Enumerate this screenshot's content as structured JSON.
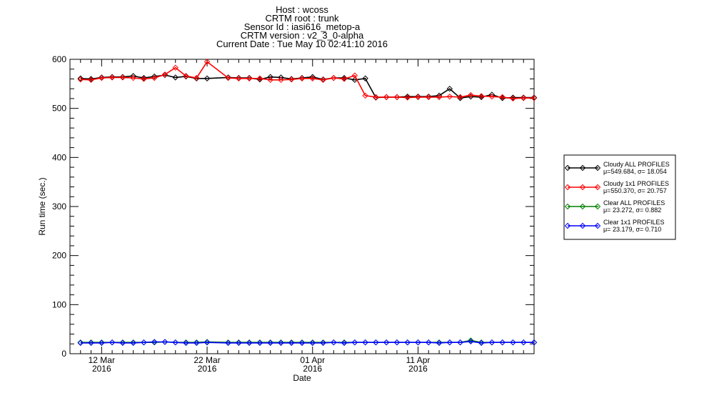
{
  "chart_data": {
    "type": "line",
    "title_lines": [
      "Host : wcoss",
      "CRTM root : trunk",
      "Sensor Id : iasi616_metop-a",
      "CRTM version : v2_3_0-alpha",
      "Current Date : Tue May 10 02:41:10 2016"
    ],
    "xlabel": "Date",
    "ylabel": "Run time (sec.)",
    "xlim": [
      "2016-03-09",
      "2016-04-22"
    ],
    "ylim": [
      0,
      600
    ],
    "y_ticks": [
      0,
      100,
      200,
      300,
      400,
      500,
      600
    ],
    "x_ticks": [
      {
        "date": "2016-03-12",
        "line1": "12 Mar",
        "line2": "2016"
      },
      {
        "date": "2016-03-22",
        "line1": "22 Mar",
        "line2": "2016"
      },
      {
        "date": "2016-04-01",
        "line1": "01 Apr",
        "line2": "2016"
      },
      {
        "date": "2016-04-11",
        "line1": "11 Apr",
        "line2": "2016"
      }
    ],
    "grid": false,
    "legend_placement": "right",
    "series": [
      {
        "name": "Cloudy ALL PROFILES",
        "stats": "μ=549.684, σ= 18.054",
        "color": "#000000",
        "x": [
          "2016-03-10",
          "2016-03-11",
          "2016-03-12",
          "2016-03-13",
          "2016-03-14",
          "2016-03-15",
          "2016-03-16",
          "2016-03-17",
          "2016-03-18",
          "2016-03-19",
          "2016-03-20",
          "2016-03-21",
          "2016-03-22",
          "2016-03-24",
          "2016-03-25",
          "2016-03-26",
          "2016-03-27",
          "2016-03-28",
          "2016-03-29",
          "2016-03-30",
          "2016-03-31",
          "2016-04-01",
          "2016-04-02",
          "2016-04-03",
          "2016-04-04",
          "2016-04-05",
          "2016-04-06",
          "2016-04-07",
          "2016-04-08",
          "2016-04-09",
          "2016-04-10",
          "2016-04-11",
          "2016-04-12",
          "2016-04-13",
          "2016-04-14",
          "2016-04-15",
          "2016-04-16",
          "2016-04-17",
          "2016-04-18",
          "2016-04-19",
          "2016-04-20",
          "2016-04-21",
          "2016-04-22"
        ],
        "values": [
          561,
          560,
          563,
          564,
          564,
          566,
          562,
          565,
          568,
          563,
          565,
          561,
          561,
          563,
          562,
          562,
          559,
          564,
          563,
          560,
          562,
          564,
          559,
          562,
          562,
          558,
          561,
          522,
          523,
          523,
          524,
          524,
          524,
          526,
          540,
          521,
          524,
          523,
          528,
          521,
          522,
          522,
          522
        ]
      },
      {
        "name": "Cloudy 1x1 PROFILES",
        "stats": "μ=550.370, σ= 20.757",
        "color": "#ff0000",
        "x": [
          "2016-03-10",
          "2016-03-11",
          "2016-03-12",
          "2016-03-13",
          "2016-03-14",
          "2016-03-15",
          "2016-03-16",
          "2016-03-17",
          "2016-03-18",
          "2016-03-19",
          "2016-03-20",
          "2016-03-21",
          "2016-03-22",
          "2016-03-24",
          "2016-03-25",
          "2016-03-26",
          "2016-03-27",
          "2016-03-28",
          "2016-03-29",
          "2016-03-30",
          "2016-03-31",
          "2016-04-01",
          "2016-04-02",
          "2016-04-03",
          "2016-04-04",
          "2016-04-05",
          "2016-04-06",
          "2016-04-07",
          "2016-04-08",
          "2016-04-09",
          "2016-04-10",
          "2016-04-11",
          "2016-04-12",
          "2016-04-13",
          "2016-04-14",
          "2016-04-15",
          "2016-04-16",
          "2016-04-17",
          "2016-04-18",
          "2016-04-19",
          "2016-04-20",
          "2016-04-21",
          "2016-04-22"
        ],
        "values": [
          559,
          558,
          562,
          563,
          563,
          562,
          560,
          562,
          569,
          583,
          566,
          562,
          595,
          562,
          561,
          561,
          561,
          558,
          558,
          559,
          561,
          561,
          558,
          562,
          560,
          567,
          526,
          523,
          523,
          523,
          522,
          523,
          523,
          523,
          524,
          523,
          527,
          525,
          524,
          523,
          520,
          521,
          521
        ]
      },
      {
        "name": "Clear ALL PROFILES",
        "stats": "μ= 23.272, σ=  0.882",
        "color": "#008000",
        "x": [
          "2016-03-10",
          "2016-03-11",
          "2016-03-12",
          "2016-03-13",
          "2016-03-14",
          "2016-03-15",
          "2016-03-16",
          "2016-03-17",
          "2016-03-18",
          "2016-03-19",
          "2016-03-20",
          "2016-03-21",
          "2016-03-22",
          "2016-03-24",
          "2016-03-25",
          "2016-03-26",
          "2016-03-27",
          "2016-03-28",
          "2016-03-29",
          "2016-03-30",
          "2016-03-31",
          "2016-04-01",
          "2016-04-02",
          "2016-04-03",
          "2016-04-04",
          "2016-04-05",
          "2016-04-06",
          "2016-04-07",
          "2016-04-08",
          "2016-04-09",
          "2016-04-10",
          "2016-04-11",
          "2016-04-12",
          "2016-04-13",
          "2016-04-14",
          "2016-04-15",
          "2016-04-16",
          "2016-04-17",
          "2016-04-18",
          "2016-04-19",
          "2016-04-20",
          "2016-04-21",
          "2016-04-22"
        ],
        "values": [
          23,
          23,
          23,
          23,
          23,
          23,
          23,
          23,
          24,
          23,
          23,
          23,
          24,
          23,
          23,
          23,
          23,
          23,
          23,
          23,
          23,
          23,
          23,
          23,
          23,
          23,
          23,
          23,
          23,
          23,
          23,
          23,
          23,
          23,
          23,
          23,
          27,
          23,
          23,
          23,
          23,
          23,
          23
        ]
      },
      {
        "name": "Clear 1x1 PROFILES",
        "stats": "μ= 23.179, σ=  0.710",
        "color": "#0000ff",
        "x": [
          "2016-03-10",
          "2016-03-11",
          "2016-03-12",
          "2016-03-13",
          "2016-03-14",
          "2016-03-15",
          "2016-03-16",
          "2016-03-17",
          "2016-03-18",
          "2016-03-19",
          "2016-03-20",
          "2016-03-21",
          "2016-03-22",
          "2016-03-24",
          "2016-03-25",
          "2016-03-26",
          "2016-03-27",
          "2016-03-28",
          "2016-03-29",
          "2016-03-30",
          "2016-03-31",
          "2016-04-01",
          "2016-04-02",
          "2016-04-03",
          "2016-04-04",
          "2016-04-05",
          "2016-04-06",
          "2016-04-07",
          "2016-04-08",
          "2016-04-09",
          "2016-04-10",
          "2016-04-11",
          "2016-04-12",
          "2016-04-13",
          "2016-04-14",
          "2016-04-15",
          "2016-04-16",
          "2016-04-17",
          "2016-04-18",
          "2016-04-19",
          "2016-04-20",
          "2016-04-21",
          "2016-04-22"
        ],
        "values": [
          22,
          22,
          22,
          23,
          22,
          22,
          23,
          24,
          24,
          23,
          22,
          22,
          23,
          22,
          22,
          22,
          22,
          22,
          22,
          22,
          22,
          22,
          22,
          23,
          22,
          23,
          23,
          23,
          23,
          23,
          23,
          23,
          23,
          22,
          23,
          23,
          25,
          22,
          23,
          23,
          23,
          23,
          23
        ]
      }
    ]
  }
}
